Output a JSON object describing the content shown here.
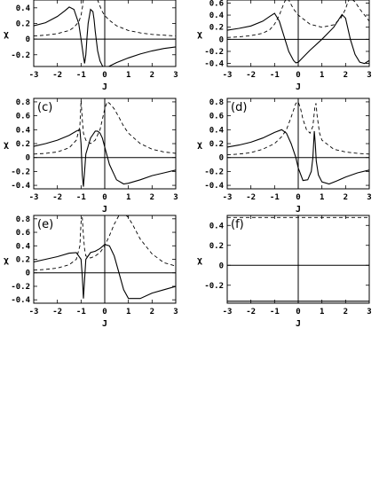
{
  "chart_data": [
    {
      "type": "line",
      "panel_label": "",
      "xlabel": "J",
      "ylabel": "χ",
      "xlim": [
        -3,
        3
      ],
      "ylim": [
        -0.35,
        0.5
      ],
      "yticks": [
        -0.2,
        0,
        0.2,
        0.4
      ],
      "ytick_labels": [
        "-0.2",
        "0",
        "0.2",
        "0.4"
      ],
      "xticks": [
        -3,
        -2,
        -1,
        0,
        1,
        2,
        3
      ],
      "xtick_labels": [
        "-3",
        "-2",
        "-1",
        "0",
        "1",
        "2",
        "3"
      ],
      "series": [
        {
          "style": "solid",
          "x": [
            -3,
            -2.5,
            -2,
            -1.7,
            -1.5,
            -1.3,
            -1.1,
            -1.0,
            -0.9,
            -0.85,
            -0.8,
            -0.75,
            -0.7,
            -0.6,
            -0.5,
            -0.45,
            -0.4,
            -0.3,
            -0.2,
            -0.1,
            0,
            0.05,
            0.1,
            0.3,
            0.5,
            1,
            1.5,
            2,
            2.5,
            3
          ],
          "y": [
            0.17,
            0.21,
            0.29,
            0.36,
            0.41,
            0.38,
            0.2,
            0.0,
            -0.22,
            -0.31,
            -0.2,
            0.02,
            0.2,
            0.38,
            0.35,
            0.25,
            0.1,
            -0.15,
            -0.28,
            -0.34,
            -0.38,
            -0.37,
            -0.36,
            -0.33,
            -0.3,
            -0.24,
            -0.19,
            -0.15,
            -0.12,
            -0.1
          ]
        },
        {
          "style": "dashed",
          "x": [
            -3,
            -2.5,
            -2,
            -1.5,
            -1.3,
            -1.1,
            -1.0,
            -0.92,
            -0.88,
            -0.85,
            -0.8,
            -0.7,
            -0.6,
            -0.5,
            -0.45,
            -0.4,
            -0.3,
            -0.2,
            -0.1,
            0,
            0.2,
            0.5,
            1,
            1.5,
            2,
            2.5,
            3
          ],
          "y": [
            0.04,
            0.05,
            0.07,
            0.11,
            0.15,
            0.22,
            0.3,
            0.45,
            0.6,
            0.66,
            0.55,
            0.5,
            0.55,
            0.6,
            0.62,
            0.6,
            0.5,
            0.42,
            0.35,
            0.3,
            0.24,
            0.17,
            0.11,
            0.08,
            0.06,
            0.05,
            0.04
          ]
        }
      ]
    },
    {
      "type": "line",
      "panel_label": "",
      "xlabel": "J",
      "ylabel": "χ",
      "xlim": [
        -3,
        3
      ],
      "ylim": [
        -0.45,
        0.65
      ],
      "yticks": [
        -0.4,
        -0.2,
        0,
        0.2,
        0.4,
        0.6
      ],
      "ytick_labels": [
        "-0.4",
        "-0.2",
        "0",
        "0.2",
        "0.4",
        "0.6"
      ],
      "xticks": [
        -3,
        -2,
        -1,
        0,
        1,
        2,
        3
      ],
      "xtick_labels": [
        "-3",
        "-2",
        "-1",
        "0",
        "1",
        "2",
        "3"
      ],
      "series": [
        {
          "style": "solid",
          "x": [
            -3,
            -2.5,
            -2,
            -1.5,
            -1.2,
            -1.0,
            -0.8,
            -0.6,
            -0.4,
            -0.2,
            -0.1,
            0,
            0.2,
            0.5,
            1,
            1.5,
            1.7,
            1.85,
            2.0,
            2.2,
            2.4,
            2.6,
            2.8,
            3
          ],
          "y": [
            0.15,
            0.18,
            0.22,
            0.3,
            0.38,
            0.43,
            0.3,
            0.05,
            -0.2,
            -0.35,
            -0.39,
            -0.38,
            -0.3,
            -0.18,
            0.0,
            0.2,
            0.32,
            0.41,
            0.35,
            0.0,
            -0.25,
            -0.38,
            -0.4,
            -0.35
          ]
        },
        {
          "style": "dashed",
          "x": [
            -3,
            -2.5,
            -2,
            -1.5,
            -1.2,
            -1.0,
            -0.8,
            -0.6,
            -0.5,
            -0.4,
            -0.2,
            0,
            0.5,
            1,
            1.5,
            1.8,
            2.0,
            2.1,
            2.2,
            2.4,
            2.6,
            2.8,
            3
          ],
          "y": [
            0.03,
            0.04,
            0.06,
            0.1,
            0.16,
            0.25,
            0.4,
            0.6,
            0.68,
            0.65,
            0.5,
            0.4,
            0.25,
            0.2,
            0.24,
            0.35,
            0.5,
            0.62,
            0.68,
            0.62,
            0.5,
            0.4,
            0.3
          ]
        }
      ]
    },
    {
      "type": "line",
      "panel_label": "(c)",
      "xlabel": "J",
      "ylabel": "χ",
      "xlim": [
        -3,
        3
      ],
      "ylim": [
        -0.45,
        0.85
      ],
      "yticks": [
        -0.4,
        -0.2,
        0,
        0.2,
        0.4,
        0.6,
        0.8
      ],
      "ytick_labels": [
        "-0.4",
        "-0.2",
        "0",
        "0.2",
        "0.4",
        "0.6",
        "0.8"
      ],
      "xticks": [
        -3,
        -2,
        -1,
        0,
        1,
        2,
        3
      ],
      "xtick_labels": [
        "-3",
        "-2",
        "-1",
        "0",
        "1",
        "2",
        "3"
      ],
      "series": [
        {
          "style": "solid",
          "x": [
            -3,
            -2.5,
            -2,
            -1.5,
            -1.2,
            -1.05,
            -1.0,
            -0.95,
            -0.9,
            -0.85,
            -0.8,
            -0.6,
            -0.4,
            -0.3,
            -0.2,
            -0.1,
            0,
            0.2,
            0.5,
            0.8,
            1,
            1.5,
            2,
            2.5,
            3
          ],
          "y": [
            0.16,
            0.2,
            0.25,
            0.32,
            0.38,
            0.4,
            0.2,
            -0.25,
            -0.42,
            -0.2,
            0.05,
            0.28,
            0.38,
            0.38,
            0.35,
            0.28,
            0.15,
            -0.1,
            -0.32,
            -0.38,
            -0.37,
            -0.32,
            -0.26,
            -0.22,
            -0.18
          ]
        },
        {
          "style": "dashed",
          "x": [
            -3,
            -2.5,
            -2,
            -1.5,
            -1.2,
            -1.05,
            -1.0,
            -0.95,
            -0.9,
            -0.8,
            -0.6,
            -0.4,
            -0.2,
            0,
            0.1,
            0.2,
            0.4,
            0.6,
            0.8,
            1,
            1.5,
            2,
            2.5,
            3
          ],
          "y": [
            0.05,
            0.06,
            0.08,
            0.14,
            0.25,
            0.45,
            0.82,
            0.55,
            0.35,
            0.25,
            0.2,
            0.25,
            0.4,
            0.7,
            0.8,
            0.78,
            0.7,
            0.58,
            0.45,
            0.35,
            0.2,
            0.12,
            0.08,
            0.06
          ]
        }
      ]
    },
    {
      "type": "line",
      "panel_label": "(d)",
      "xlabel": "J",
      "ylabel": "χ",
      "xlim": [
        -3,
        3
      ],
      "ylim": [
        -0.45,
        0.85
      ],
      "yticks": [
        -0.4,
        -0.2,
        0,
        0.2,
        0.4,
        0.6,
        0.8
      ],
      "ytick_labels": [
        "-0.4",
        "-0.2",
        "0",
        "0.2",
        "0.4",
        "0.6",
        "0.8"
      ],
      "xticks": [
        -3,
        -2,
        -1,
        0,
        1,
        2,
        3
      ],
      "xtick_labels": [
        "-3",
        "-2",
        "-1",
        "0",
        "1",
        "2",
        "3"
      ],
      "series": [
        {
          "style": "solid",
          "x": [
            -3,
            -2.5,
            -2,
            -1.5,
            -1.0,
            -0.7,
            -0.5,
            -0.3,
            -0.1,
            0,
            0.2,
            0.4,
            0.55,
            0.62,
            0.68,
            0.72,
            0.76,
            0.85,
            1.0,
            1.3,
            1.6,
            2,
            2.5,
            3
          ],
          "y": [
            0.15,
            0.18,
            0.22,
            0.28,
            0.36,
            0.4,
            0.35,
            0.2,
            0.0,
            -0.15,
            -0.33,
            -0.32,
            -0.2,
            0.0,
            0.38,
            0.2,
            -0.05,
            -0.25,
            -0.35,
            -0.38,
            -0.34,
            -0.28,
            -0.22,
            -0.18
          ]
        },
        {
          "style": "dashed",
          "x": [
            -3,
            -2.5,
            -2,
            -1.5,
            -1.0,
            -0.7,
            -0.5,
            -0.3,
            -0.1,
            0,
            0.1,
            0.2,
            0.35,
            0.5,
            0.62,
            0.7,
            0.75,
            0.8,
            0.9,
            1.0,
            1.5,
            2,
            2.5,
            3
          ],
          "y": [
            0.04,
            0.05,
            0.07,
            0.12,
            0.2,
            0.3,
            0.4,
            0.58,
            0.78,
            0.8,
            0.7,
            0.55,
            0.4,
            0.35,
            0.45,
            0.72,
            0.78,
            0.6,
            0.35,
            0.25,
            0.12,
            0.08,
            0.06,
            0.05
          ]
        }
      ]
    },
    {
      "type": "line",
      "panel_label": "(e)",
      "xlabel": "J",
      "ylabel": "χ",
      "xlim": [
        -3,
        3
      ],
      "ylim": [
        -0.45,
        0.85
      ],
      "yticks": [
        -0.4,
        -0.2,
        0,
        0.2,
        0.4,
        0.6,
        0.8
      ],
      "ytick_labels": [
        "-0.4",
        "-0.2",
        "0",
        "0.2",
        "0.4",
        "0.6",
        "0.8"
      ],
      "xticks": [
        -3,
        -2,
        -1,
        0,
        1,
        2,
        3
      ],
      "xtick_labels": [
        "-3",
        "-2",
        "-1",
        "0",
        "1",
        "2",
        "3"
      ],
      "series": [
        {
          "style": "solid",
          "x": [
            -3,
            -2.5,
            -2,
            -1.5,
            -1.2,
            -1.0,
            -0.95,
            -0.9,
            -0.85,
            -0.8,
            -0.6,
            -0.4,
            -0.2,
            0,
            0.2,
            0.4,
            0.6,
            0.8,
            1,
            1.5,
            2,
            2.5,
            3
          ],
          "y": [
            0.16,
            0.2,
            0.24,
            0.29,
            0.3,
            0.2,
            -0.05,
            -0.38,
            -0.1,
            0.2,
            0.3,
            0.32,
            0.36,
            0.42,
            0.4,
            0.25,
            0.0,
            -0.25,
            -0.38,
            -0.38,
            -0.3,
            -0.25,
            -0.2
          ]
        },
        {
          "style": "dashed",
          "x": [
            -3,
            -2.5,
            -2,
            -1.5,
            -1.2,
            -1.05,
            -1.0,
            -0.95,
            -0.9,
            -0.85,
            -0.8,
            -0.6,
            -0.4,
            -0.2,
            0,
            0.2,
            0.4,
            0.6,
            0.8,
            1.0,
            1.2,
            1.5,
            2,
            2.5,
            3
          ],
          "y": [
            0.04,
            0.05,
            0.07,
            0.12,
            0.2,
            0.4,
            0.75,
            0.82,
            0.55,
            0.35,
            0.25,
            0.22,
            0.25,
            0.3,
            0.4,
            0.55,
            0.72,
            0.85,
            0.88,
            0.82,
            0.7,
            0.5,
            0.28,
            0.15,
            0.1
          ]
        }
      ]
    },
    {
      "type": "line",
      "panel_label": "(f)",
      "xlabel": "J",
      "ylabel": "χ",
      "xlim": [
        -3,
        3
      ],
      "ylim": [
        -0.38,
        0.5
      ],
      "yticks": [
        -0.2,
        0,
        0.2,
        0.4
      ],
      "ytick_labels": [
        "-0.2",
        "0",
        "0.2",
        "0.4"
      ],
      "xticks": [
        -3,
        -2,
        -1,
        0,
        1,
        2,
        3
      ],
      "xtick_labels": [
        "-3",
        "-2",
        "-1",
        "0",
        "1",
        "2",
        "3"
      ],
      "series": [
        {
          "style": "solid",
          "x": [
            -3,
            3
          ],
          "y": [
            -0.36,
            -0.36
          ]
        },
        {
          "style": "dashed",
          "x": [
            -3,
            3
          ],
          "y": [
            0.48,
            0.48
          ]
        }
      ]
    }
  ]
}
